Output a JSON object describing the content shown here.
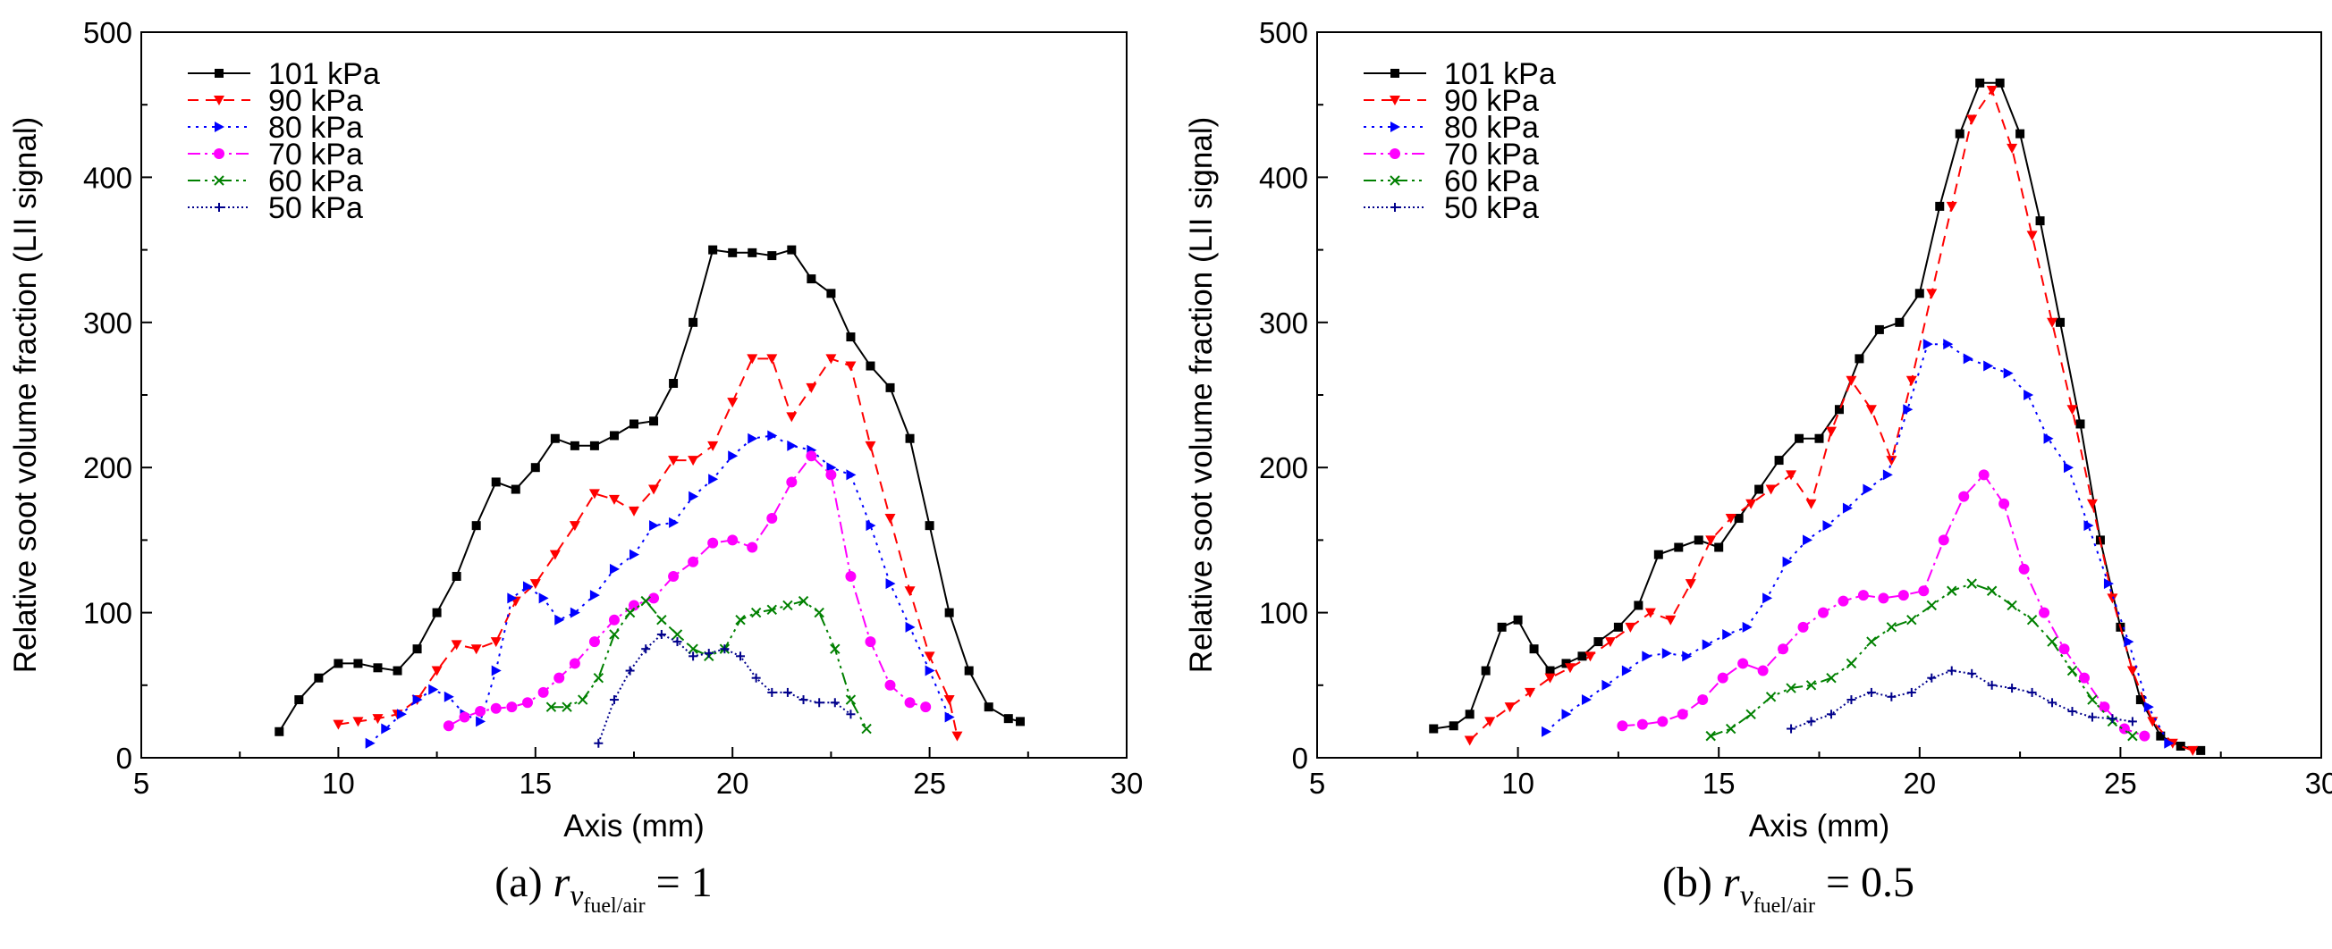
{
  "chart_data": [
    {
      "type": "line",
      "caption": {
        "prefix": "(a) ",
        "var": "r",
        "sub1": "v",
        "sub2": "fuel/air",
        "suffix": " = 1"
      },
      "xlabel": "Axis (mm)",
      "ylabel": "Relative soot volume fraction (LII signal)",
      "xlim": [
        5,
        30
      ],
      "ylim": [
        0,
        500
      ],
      "xticks": [
        5,
        10,
        15,
        20,
        25,
        30
      ],
      "yticks": [
        0,
        100,
        200,
        300,
        400,
        500
      ],
      "legend_position": "top-left",
      "series": [
        {
          "name": "101 kPa",
          "color": "#000000",
          "dash": "",
          "marker": "square",
          "x": [
            8.5,
            9.0,
            9.5,
            10.0,
            10.5,
            11.0,
            11.5,
            12.0,
            12.5,
            13.0,
            13.5,
            14.0,
            14.5,
            15.0,
            15.5,
            16.0,
            16.5,
            17.0,
            17.5,
            18.0,
            18.5,
            19.0,
            19.5,
            20.0,
            20.5,
            21.0,
            21.5,
            22.0,
            22.5,
            23.0,
            23.5,
            24.0,
            24.5,
            25.0,
            25.5,
            26.0,
            26.5,
            27.0,
            27.3
          ],
          "y": [
            18,
            40,
            55,
            65,
            65,
            62,
            60,
            75,
            100,
            125,
            160,
            190,
            185,
            200,
            220,
            215,
            215,
            222,
            230,
            232,
            258,
            300,
            350,
            348,
            348,
            346,
            350,
            330,
            320,
            290,
            270,
            255,
            220,
            160,
            100,
            60,
            35,
            27,
            25
          ]
        },
        {
          "name": "90 kPa",
          "color": "#ff0000",
          "dash": "12,8",
          "marker": "triangle-down",
          "x": [
            10.0,
            10.5,
            11.0,
            11.5,
            12.0,
            12.5,
            13.0,
            13.5,
            14.0,
            14.5,
            15.0,
            15.5,
            16.0,
            16.5,
            17.0,
            17.5,
            18.0,
            18.5,
            19.0,
            19.5,
            20.0,
            20.5,
            21.0,
            21.5,
            22.0,
            22.5,
            23.0,
            23.5,
            24.0,
            24.5,
            25.0,
            25.5,
            25.7
          ],
          "y": [
            23,
            25,
            27,
            30,
            40,
            60,
            78,
            75,
            80,
            108,
            120,
            140,
            160,
            182,
            178,
            170,
            185,
            205,
            205,
            215,
            245,
            275,
            275,
            235,
            255,
            275,
            270,
            215,
            165,
            115,
            70,
            40,
            15
          ]
        },
        {
          "name": "80 kPa",
          "color": "#0000ff",
          "dash": "3,6",
          "marker": "triangle-right",
          "x": [
            10.8,
            11.2,
            11.6,
            12.0,
            12.4,
            12.8,
            13.2,
            13.6,
            14.0,
            14.4,
            14.8,
            15.2,
            15.6,
            16.0,
            16.5,
            17.0,
            17.5,
            18.0,
            18.5,
            19.0,
            19.5,
            20.0,
            20.5,
            21.0,
            21.5,
            22.0,
            22.5,
            23.0,
            23.5,
            24.0,
            24.5,
            25.0,
            25.5
          ],
          "y": [
            10,
            20,
            30,
            40,
            47,
            42,
            30,
            25,
            60,
            110,
            118,
            110,
            95,
            100,
            112,
            130,
            140,
            160,
            162,
            180,
            192,
            208,
            220,
            222,
            215,
            212,
            200,
            195,
            160,
            120,
            90,
            60,
            28
          ]
        },
        {
          "name": "70 kPa",
          "color": "#ff00ff",
          "dash": "14,5,3,5",
          "marker": "circle",
          "x": [
            12.8,
            13.2,
            13.6,
            14.0,
            14.4,
            14.8,
            15.2,
            15.6,
            16.0,
            16.5,
            17.0,
            17.5,
            18.0,
            18.5,
            19.0,
            19.5,
            20.0,
            20.5,
            21.0,
            21.5,
            22.0,
            22.5,
            23.0,
            23.5,
            24.0,
            24.5,
            24.9
          ],
          "y": [
            22,
            28,
            32,
            34,
            35,
            38,
            45,
            55,
            65,
            80,
            95,
            105,
            110,
            125,
            135,
            148,
            150,
            145,
            165,
            190,
            208,
            195,
            125,
            80,
            50,
            38,
            35
          ]
        },
        {
          "name": "60 kPa",
          "color": "#008000",
          "dash": "14,5,3,5,3,5",
          "marker": "x",
          "x": [
            15.4,
            15.8,
            16.2,
            16.6,
            17.0,
            17.4,
            17.8,
            18.2,
            18.6,
            19.0,
            19.4,
            19.8,
            20.2,
            20.6,
            21.0,
            21.4,
            21.8,
            22.2,
            22.6,
            23.0,
            23.4
          ],
          "y": [
            35,
            35,
            40,
            55,
            85,
            100,
            108,
            95,
            85,
            75,
            70,
            75,
            95,
            100,
            102,
            105,
            108,
            100,
            75,
            40,
            20
          ]
        },
        {
          "name": "50 kPa",
          "color": "#00008b",
          "dash": "2,3",
          "marker": "plus",
          "x": [
            16.6,
            17.0,
            17.4,
            17.8,
            18.2,
            18.6,
            19.0,
            19.4,
            19.8,
            20.2,
            20.6,
            21.0,
            21.4,
            21.8,
            22.2,
            22.6,
            23.0
          ],
          "y": [
            10,
            40,
            60,
            75,
            85,
            80,
            70,
            72,
            75,
            70,
            55,
            45,
            45,
            40,
            38,
            38,
            30
          ]
        }
      ]
    },
    {
      "type": "line",
      "caption": {
        "prefix": "(b) ",
        "var": "r",
        "sub1": "v",
        "sub2": "fuel/air",
        "suffix": " = 0.5"
      },
      "xlabel": "Axis (mm)",
      "ylabel": "Relative soot volume fraction (LII signal)",
      "xlim": [
        5,
        30
      ],
      "ylim": [
        0,
        500
      ],
      "xticks": [
        5,
        10,
        15,
        20,
        25,
        30
      ],
      "yticks": [
        0,
        100,
        200,
        300,
        400,
        500
      ],
      "legend_position": "top-left",
      "series": [
        {
          "name": "101 kPa",
          "color": "#000000",
          "dash": "",
          "marker": "square",
          "x": [
            7.9,
            8.4,
            8.8,
            9.2,
            9.6,
            10.0,
            10.4,
            10.8,
            11.2,
            11.6,
            12.0,
            12.5,
            13.0,
            13.5,
            14.0,
            14.5,
            15.0,
            15.5,
            16.0,
            16.5,
            17.0,
            17.5,
            18.0,
            18.5,
            19.0,
            19.5,
            20.0,
            20.5,
            21.0,
            21.5,
            22.0,
            22.5,
            23.0,
            23.5,
            24.0,
            24.5,
            25.0,
            25.5,
            26.0,
            26.5,
            27.0
          ],
          "y": [
            20,
            22,
            30,
            60,
            90,
            95,
            75,
            60,
            65,
            70,
            80,
            90,
            105,
            140,
            145,
            150,
            145,
            165,
            185,
            205,
            220,
            220,
            240,
            275,
            295,
            300,
            320,
            380,
            430,
            465,
            465,
            430,
            370,
            300,
            230,
            150,
            90,
            40,
            15,
            8,
            5
          ]
        },
        {
          "name": "90 kPa",
          "color": "#ff0000",
          "dash": "12,8",
          "marker": "triangle-down",
          "x": [
            8.8,
            9.3,
            9.8,
            10.3,
            10.8,
            11.3,
            11.8,
            12.3,
            12.8,
            13.3,
            13.8,
            14.3,
            14.8,
            15.3,
            15.8,
            16.3,
            16.8,
            17.3,
            17.8,
            18.3,
            18.8,
            19.3,
            19.8,
            20.3,
            20.8,
            21.3,
            21.8,
            22.3,
            22.8,
            23.3,
            23.8,
            24.3,
            24.8,
            25.3,
            25.8,
            26.3,
            26.8
          ],
          "y": [
            12,
            25,
            35,
            45,
            55,
            62,
            70,
            80,
            90,
            100,
            95,
            120,
            150,
            165,
            175,
            185,
            195,
            175,
            225,
            260,
            240,
            205,
            260,
            320,
            380,
            440,
            460,
            420,
            360,
            300,
            240,
            175,
            110,
            60,
            25,
            10,
            5
          ]
        },
        {
          "name": "80 kPa",
          "color": "#0000ff",
          "dash": "3,6",
          "marker": "triangle-right",
          "x": [
            10.7,
            11.2,
            11.7,
            12.2,
            12.7,
            13.2,
            13.7,
            14.2,
            14.7,
            15.2,
            15.7,
            16.2,
            16.7,
            17.2,
            17.7,
            18.2,
            18.7,
            19.2,
            19.7,
            20.2,
            20.7,
            21.2,
            21.7,
            22.2,
            22.7,
            23.2,
            23.7,
            24.2,
            24.7,
            25.2,
            25.7,
            26.2
          ],
          "y": [
            18,
            30,
            40,
            50,
            60,
            70,
            72,
            70,
            78,
            85,
            90,
            110,
            135,
            150,
            160,
            172,
            185,
            195,
            240,
            285,
            285,
            275,
            270,
            265,
            250,
            220,
            200,
            160,
            120,
            80,
            35,
            10
          ]
        },
        {
          "name": "70 kPa",
          "color": "#ff00ff",
          "dash": "14,5,3,5",
          "marker": "circle",
          "x": [
            12.6,
            13.1,
            13.6,
            14.1,
            14.6,
            15.1,
            15.6,
            16.1,
            16.6,
            17.1,
            17.6,
            18.1,
            18.6,
            19.1,
            19.6,
            20.1,
            20.6,
            21.1,
            21.6,
            22.1,
            22.6,
            23.1,
            23.6,
            24.1,
            24.6,
            25.1,
            25.6
          ],
          "y": [
            22,
            23,
            25,
            30,
            40,
            55,
            65,
            60,
            75,
            90,
            100,
            108,
            112,
            110,
            112,
            115,
            150,
            180,
            195,
            175,
            130,
            100,
            75,
            55,
            35,
            20,
            15
          ]
        },
        {
          "name": "60 kPa",
          "color": "#008000",
          "dash": "14,5,3,5,3,5",
          "marker": "x",
          "x": [
            14.8,
            15.3,
            15.8,
            16.3,
            16.8,
            17.3,
            17.8,
            18.3,
            18.8,
            19.3,
            19.8,
            20.3,
            20.8,
            21.3,
            21.8,
            22.3,
            22.8,
            23.3,
            23.8,
            24.3,
            24.8,
            25.3
          ],
          "y": [
            15,
            20,
            30,
            42,
            48,
            50,
            55,
            65,
            80,
            90,
            95,
            105,
            115,
            120,
            115,
            105,
            95,
            80,
            60,
            40,
            25,
            15
          ]
        },
        {
          "name": "50 kPa",
          "color": "#00008b",
          "dash": "2,3",
          "marker": "plus",
          "x": [
            16.8,
            17.3,
            17.8,
            18.3,
            18.8,
            19.3,
            19.8,
            20.3,
            20.8,
            21.3,
            21.8,
            22.3,
            22.8,
            23.3,
            23.8,
            24.3,
            24.8,
            25.3
          ],
          "y": [
            20,
            25,
            30,
            40,
            45,
            42,
            45,
            55,
            60,
            58,
            50,
            48,
            45,
            38,
            32,
            28,
            27,
            25
          ]
        }
      ]
    }
  ]
}
